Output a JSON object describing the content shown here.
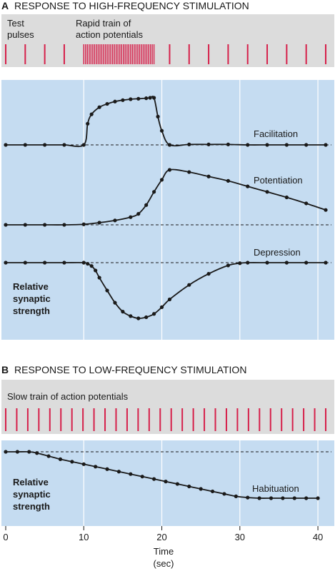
{
  "panel_a": {
    "letter": "A",
    "title": "RESPONSE TO HIGH-FREQUENCY STIMULATION",
    "stim_label_1": [
      "Test",
      "pulses"
    ],
    "stim_label_2": [
      "Rapid train of",
      "action potentials"
    ],
    "ylabel": [
      "Relative",
      "synaptic",
      "strength"
    ]
  },
  "panel_b": {
    "letter": "B",
    "title": "RESPONSE TO LOW-FREQUENCY STIMULATION",
    "stim_label": "Slow train of action potentials",
    "ylabel": [
      "Relative",
      "synaptic",
      "strength"
    ]
  },
  "x_axis": {
    "label_1": "Time",
    "label_2": "(sec)",
    "ticks": [
      "0",
      "10",
      "20",
      "30",
      "40"
    ]
  },
  "colors": {
    "stim_bg": "#dcdcdc",
    "plot_bg": "#c5dcf1",
    "spike": "#d6204a",
    "grid": "#ffffff",
    "curve": "#1a1a1a"
  },
  "chart_data": [
    {
      "type": "line",
      "title": "RESPONSE TO HIGH-FREQUENCY STIMULATION",
      "xlabel": "Time (sec)",
      "ylabel": "Relative synaptic strength",
      "xlim": [
        0,
        41
      ],
      "stimulus": {
        "test_pulses": [
          0,
          2.5,
          5,
          7.5
        ],
        "rapid_train": {
          "start": 10,
          "end": 19,
          "count": 40
        },
        "test_pulses_after": [
          21,
          23.5,
          26,
          28.5,
          31,
          33.5,
          36,
          38.5,
          41
        ]
      },
      "series": [
        {
          "name": "Facilitation",
          "baseline": 0,
          "x": [
            0,
            2.5,
            5,
            7.5,
            10,
            10.5,
            11,
            12,
            13,
            14,
            15,
            16,
            17,
            18,
            18.5,
            19,
            19.5,
            20,
            21,
            23.5,
            26,
            28.5,
            31,
            33.5,
            36,
            38.5,
            41
          ],
          "values": [
            0,
            0,
            0,
            0,
            0,
            0.45,
            0.65,
            0.8,
            0.87,
            0.92,
            0.95,
            0.97,
            0.98,
            0.99,
            1.0,
            1.0,
            0.6,
            0.3,
            0,
            0.01,
            0.01,
            0.01,
            0,
            0,
            0,
            0,
            0
          ]
        },
        {
          "name": "Potentiation",
          "baseline": 0,
          "x": [
            0,
            2.5,
            5,
            7.5,
            10,
            12,
            14,
            16,
            17,
            18,
            19,
            20,
            21,
            23.5,
            26,
            28.5,
            31,
            33.5,
            36,
            38.5,
            41
          ],
          "values": [
            0,
            0,
            0,
            0,
            0.01,
            0.04,
            0.08,
            0.14,
            0.2,
            0.36,
            0.6,
            0.82,
            1.0,
            0.96,
            0.88,
            0.8,
            0.7,
            0.6,
            0.5,
            0.39,
            0.27
          ]
        },
        {
          "name": "Depression",
          "baseline": 0,
          "x": [
            0,
            2.5,
            5,
            7.5,
            10,
            10.5,
            11,
            11.5,
            12,
            13,
            14,
            15,
            16,
            17,
            18,
            19,
            20,
            21,
            23.5,
            26,
            28.5,
            30,
            31,
            33.5,
            36,
            38.5,
            41
          ],
          "values": [
            0,
            0,
            0,
            0,
            0,
            -0.02,
            -0.06,
            -0.14,
            -0.27,
            -0.5,
            -0.72,
            -0.88,
            -0.96,
            -1.0,
            -0.98,
            -0.92,
            -0.8,
            -0.66,
            -0.4,
            -0.2,
            -0.05,
            -0.01,
            0,
            0,
            0,
            0,
            0
          ]
        }
      ]
    },
    {
      "type": "line",
      "title": "RESPONSE TO LOW-FREQUENCY STIMULATION",
      "xlabel": "Time (sec)",
      "ylabel": "Relative synaptic strength",
      "xlim": [
        0,
        41
      ],
      "stimulus": {
        "slow_train": {
          "start": 0,
          "end": 41,
          "count": 30
        }
      },
      "series": [
        {
          "name": "Habituation",
          "baseline": 1,
          "x": [
            0,
            1.5,
            3,
            4,
            5.5,
            7,
            8.5,
            10,
            11.5,
            13,
            14.5,
            16,
            17.5,
            19,
            20.5,
            22,
            23.5,
            25,
            26.5,
            28,
            29.5,
            31,
            32.5,
            34,
            35.5,
            37,
            38.5,
            40
          ],
          "values": [
            1.0,
            1.0,
            1.0,
            0.98,
            0.93,
            0.88,
            0.84,
            0.8,
            0.76,
            0.72,
            0.68,
            0.64,
            0.6,
            0.56,
            0.52,
            0.48,
            0.44,
            0.4,
            0.36,
            0.32,
            0.28,
            0.26,
            0.25,
            0.25,
            0.25,
            0.25,
            0.25,
            0.25
          ]
        }
      ]
    }
  ]
}
